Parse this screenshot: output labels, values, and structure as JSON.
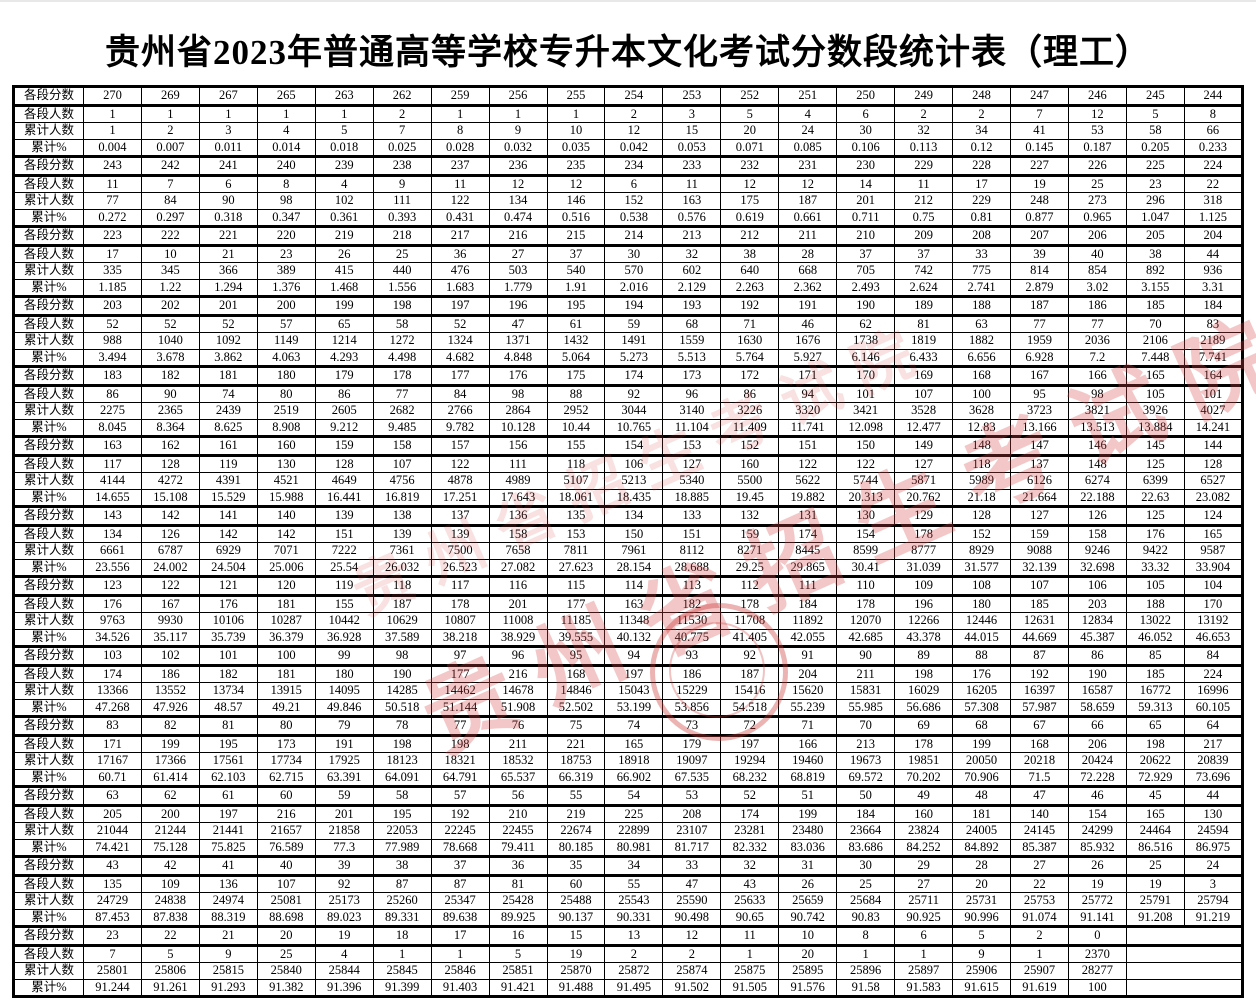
{
  "title": "贵州省2023年普通高等学校专升本文化考试分数段统计表（理工）",
  "row_labels": {
    "score": "各段分数",
    "count": "各段人数",
    "cumulative": "累计人数",
    "cum_pct": "累计%"
  },
  "watermark": {
    "text": "贵州省招生考试院",
    "color": "#d84646"
  },
  "columns_per_group": 20,
  "groups": [
    {
      "scores": [
        "270",
        "269",
        "267",
        "265",
        "263",
        "262",
        "259",
        "256",
        "255",
        "254",
        "253",
        "252",
        "251",
        "250",
        "249",
        "248",
        "247",
        "246",
        "245",
        "244"
      ],
      "counts": [
        "1",
        "1",
        "1",
        "1",
        "1",
        "2",
        "1",
        "1",
        "1",
        "2",
        "3",
        "5",
        "4",
        "6",
        "2",
        "2",
        "7",
        "12",
        "5",
        "8"
      ],
      "cums": [
        "1",
        "2",
        "3",
        "4",
        "5",
        "7",
        "8",
        "9",
        "10",
        "12",
        "15",
        "20",
        "24",
        "30",
        "32",
        "34",
        "41",
        "53",
        "58",
        "66"
      ],
      "pcts": [
        "0.004",
        "0.007",
        "0.011",
        "0.014",
        "0.018",
        "0.025",
        "0.028",
        "0.032",
        "0.035",
        "0.042",
        "0.053",
        "0.071",
        "0.085",
        "0.106",
        "0.113",
        "0.12",
        "0.145",
        "0.187",
        "0.205",
        "0.233"
      ]
    },
    {
      "scores": [
        "243",
        "242",
        "241",
        "240",
        "239",
        "238",
        "237",
        "236",
        "235",
        "234",
        "233",
        "232",
        "231",
        "230",
        "229",
        "228",
        "227",
        "226",
        "225",
        "224"
      ],
      "counts": [
        "11",
        "7",
        "6",
        "8",
        "4",
        "9",
        "11",
        "12",
        "12",
        "6",
        "11",
        "12",
        "12",
        "14",
        "11",
        "17",
        "19",
        "25",
        "23",
        "22"
      ],
      "cums": [
        "77",
        "84",
        "90",
        "98",
        "102",
        "111",
        "122",
        "134",
        "146",
        "152",
        "163",
        "175",
        "187",
        "201",
        "212",
        "229",
        "248",
        "273",
        "296",
        "318"
      ],
      "pcts": [
        "0.272",
        "0.297",
        "0.318",
        "0.347",
        "0.361",
        "0.393",
        "0.431",
        "0.474",
        "0.516",
        "0.538",
        "0.576",
        "0.619",
        "0.661",
        "0.711",
        "0.75",
        "0.81",
        "0.877",
        "0.965",
        "1.047",
        "1.125"
      ]
    },
    {
      "scores": [
        "223",
        "222",
        "221",
        "220",
        "219",
        "218",
        "217",
        "216",
        "215",
        "214",
        "213",
        "212",
        "211",
        "210",
        "209",
        "208",
        "207",
        "206",
        "205",
        "204"
      ],
      "counts": [
        "17",
        "10",
        "21",
        "23",
        "26",
        "25",
        "36",
        "27",
        "37",
        "30",
        "32",
        "38",
        "28",
        "37",
        "37",
        "33",
        "39",
        "40",
        "38",
        "44"
      ],
      "cums": [
        "335",
        "345",
        "366",
        "389",
        "415",
        "440",
        "476",
        "503",
        "540",
        "570",
        "602",
        "640",
        "668",
        "705",
        "742",
        "775",
        "814",
        "854",
        "892",
        "936"
      ],
      "pcts": [
        "1.185",
        "1.22",
        "1.294",
        "1.376",
        "1.468",
        "1.556",
        "1.683",
        "1.779",
        "1.91",
        "2.016",
        "2.129",
        "2.263",
        "2.362",
        "2.493",
        "2.624",
        "2.741",
        "2.879",
        "3.02",
        "3.155",
        "3.31"
      ]
    },
    {
      "scores": [
        "203",
        "202",
        "201",
        "200",
        "199",
        "198",
        "197",
        "196",
        "195",
        "194",
        "193",
        "192",
        "191",
        "190",
        "189",
        "188",
        "187",
        "186",
        "185",
        "184"
      ],
      "counts": [
        "52",
        "52",
        "52",
        "57",
        "65",
        "58",
        "52",
        "47",
        "61",
        "59",
        "68",
        "71",
        "46",
        "62",
        "81",
        "63",
        "77",
        "77",
        "70",
        "83"
      ],
      "cums": [
        "988",
        "1040",
        "1092",
        "1149",
        "1214",
        "1272",
        "1324",
        "1371",
        "1432",
        "1491",
        "1559",
        "1630",
        "1676",
        "1738",
        "1819",
        "1882",
        "1959",
        "2036",
        "2106",
        "2189"
      ],
      "pcts": [
        "3.494",
        "3.678",
        "3.862",
        "4.063",
        "4.293",
        "4.498",
        "4.682",
        "4.848",
        "5.064",
        "5.273",
        "5.513",
        "5.764",
        "5.927",
        "6.146",
        "6.433",
        "6.656",
        "6.928",
        "7.2",
        "7.448",
        "7.741"
      ]
    },
    {
      "scores": [
        "183",
        "182",
        "181",
        "180",
        "179",
        "178",
        "177",
        "176",
        "175",
        "174",
        "173",
        "172",
        "171",
        "170",
        "169",
        "168",
        "167",
        "166",
        "165",
        "164"
      ],
      "counts": [
        "86",
        "90",
        "74",
        "80",
        "86",
        "77",
        "84",
        "98",
        "88",
        "92",
        "96",
        "86",
        "94",
        "101",
        "107",
        "100",
        "95",
        "98",
        "105",
        "101"
      ],
      "cums": [
        "2275",
        "2365",
        "2439",
        "2519",
        "2605",
        "2682",
        "2766",
        "2864",
        "2952",
        "3044",
        "3140",
        "3226",
        "3320",
        "3421",
        "3528",
        "3628",
        "3723",
        "3821",
        "3926",
        "4027"
      ],
      "pcts": [
        "8.045",
        "8.364",
        "8.625",
        "8.908",
        "9.212",
        "9.485",
        "9.782",
        "10.128",
        "10.44",
        "10.765",
        "11.104",
        "11.409",
        "11.741",
        "12.098",
        "12.477",
        "12.83",
        "13.166",
        "13.513",
        "13.884",
        "14.241"
      ]
    },
    {
      "scores": [
        "163",
        "162",
        "161",
        "160",
        "159",
        "158",
        "157",
        "156",
        "155",
        "154",
        "153",
        "152",
        "151",
        "150",
        "149",
        "148",
        "147",
        "146",
        "145",
        "144"
      ],
      "counts": [
        "117",
        "128",
        "119",
        "130",
        "128",
        "107",
        "122",
        "111",
        "118",
        "106",
        "127",
        "160",
        "122",
        "122",
        "127",
        "118",
        "137",
        "148",
        "125",
        "128"
      ],
      "cums": [
        "4144",
        "4272",
        "4391",
        "4521",
        "4649",
        "4756",
        "4878",
        "4989",
        "5107",
        "5213",
        "5340",
        "5500",
        "5622",
        "5744",
        "5871",
        "5989",
        "6126",
        "6274",
        "6399",
        "6527"
      ],
      "pcts": [
        "14.655",
        "15.108",
        "15.529",
        "15.988",
        "16.441",
        "16.819",
        "17.251",
        "17.643",
        "18.061",
        "18.435",
        "18.885",
        "19.45",
        "19.882",
        "20.313",
        "20.762",
        "21.18",
        "21.664",
        "22.188",
        "22.63",
        "23.082"
      ]
    },
    {
      "scores": [
        "143",
        "142",
        "141",
        "140",
        "139",
        "138",
        "137",
        "136",
        "135",
        "134",
        "133",
        "132",
        "131",
        "130",
        "129",
        "128",
        "127",
        "126",
        "125",
        "124"
      ],
      "counts": [
        "134",
        "126",
        "142",
        "142",
        "151",
        "139",
        "139",
        "158",
        "153",
        "150",
        "151",
        "159",
        "174",
        "154",
        "178",
        "152",
        "159",
        "158",
        "176",
        "165"
      ],
      "cums": [
        "6661",
        "6787",
        "6929",
        "7071",
        "7222",
        "7361",
        "7500",
        "7658",
        "7811",
        "7961",
        "8112",
        "8271",
        "8445",
        "8599",
        "8777",
        "8929",
        "9088",
        "9246",
        "9422",
        "9587"
      ],
      "pcts": [
        "23.556",
        "24.002",
        "24.504",
        "25.006",
        "25.54",
        "26.032",
        "26.523",
        "27.082",
        "27.623",
        "28.154",
        "28.688",
        "29.25",
        "29.865",
        "30.41",
        "31.039",
        "31.577",
        "32.139",
        "32.698",
        "33.32",
        "33.904"
      ]
    },
    {
      "scores": [
        "123",
        "122",
        "121",
        "120",
        "119",
        "118",
        "117",
        "116",
        "115",
        "114",
        "113",
        "112",
        "111",
        "110",
        "109",
        "108",
        "107",
        "106",
        "105",
        "104"
      ],
      "counts": [
        "176",
        "167",
        "176",
        "181",
        "155",
        "187",
        "178",
        "201",
        "177",
        "163",
        "182",
        "178",
        "184",
        "178",
        "196",
        "180",
        "185",
        "203",
        "188",
        "170"
      ],
      "cums": [
        "9763",
        "9930",
        "10106",
        "10287",
        "10442",
        "10629",
        "10807",
        "11008",
        "11185",
        "11348",
        "11530",
        "11708",
        "11892",
        "12070",
        "12266",
        "12446",
        "12631",
        "12834",
        "13022",
        "13192"
      ],
      "pcts": [
        "34.526",
        "35.117",
        "35.739",
        "36.379",
        "36.928",
        "37.589",
        "38.218",
        "38.929",
        "39.555",
        "40.132",
        "40.775",
        "41.405",
        "42.055",
        "42.685",
        "43.378",
        "44.015",
        "44.669",
        "45.387",
        "46.052",
        "46.653"
      ]
    },
    {
      "scores": [
        "103",
        "102",
        "101",
        "100",
        "99",
        "98",
        "97",
        "96",
        "95",
        "94",
        "93",
        "92",
        "91",
        "90",
        "89",
        "88",
        "87",
        "86",
        "85",
        "84"
      ],
      "counts": [
        "174",
        "186",
        "182",
        "181",
        "180",
        "190",
        "177",
        "216",
        "168",
        "197",
        "186",
        "187",
        "204",
        "211",
        "198",
        "176",
        "192",
        "190",
        "185",
        "224"
      ],
      "cums": [
        "13366",
        "13552",
        "13734",
        "13915",
        "14095",
        "14285",
        "14462",
        "14678",
        "14846",
        "15043",
        "15229",
        "15416",
        "15620",
        "15831",
        "16029",
        "16205",
        "16397",
        "16587",
        "16772",
        "16996"
      ],
      "pcts": [
        "47.268",
        "47.926",
        "48.57",
        "49.21",
        "49.846",
        "50.518",
        "51.144",
        "51.908",
        "52.502",
        "53.199",
        "53.856",
        "54.518",
        "55.239",
        "55.985",
        "56.686",
        "57.308",
        "57.987",
        "58.659",
        "59.313",
        "60.105"
      ]
    },
    {
      "scores": [
        "83",
        "82",
        "81",
        "80",
        "79",
        "78",
        "77",
        "76",
        "75",
        "74",
        "73",
        "72",
        "71",
        "70",
        "69",
        "68",
        "67",
        "66",
        "65",
        "64"
      ],
      "counts": [
        "171",
        "199",
        "195",
        "173",
        "191",
        "198",
        "198",
        "211",
        "221",
        "165",
        "179",
        "197",
        "166",
        "213",
        "178",
        "199",
        "168",
        "206",
        "198",
        "217"
      ],
      "cums": [
        "17167",
        "17366",
        "17561",
        "17734",
        "17925",
        "18123",
        "18321",
        "18532",
        "18753",
        "18918",
        "19097",
        "19294",
        "19460",
        "19673",
        "19851",
        "20050",
        "20218",
        "20424",
        "20622",
        "20839"
      ],
      "pcts": [
        "60.71",
        "61.414",
        "62.103",
        "62.715",
        "63.391",
        "64.091",
        "64.791",
        "65.537",
        "66.319",
        "66.902",
        "67.535",
        "68.232",
        "68.819",
        "69.572",
        "70.202",
        "70.906",
        "71.5",
        "72.228",
        "72.929",
        "73.696"
      ]
    },
    {
      "scores": [
        "63",
        "62",
        "61",
        "60",
        "59",
        "58",
        "57",
        "56",
        "55",
        "54",
        "53",
        "52",
        "51",
        "50",
        "49",
        "48",
        "47",
        "46",
        "45",
        "44"
      ],
      "counts": [
        "205",
        "200",
        "197",
        "216",
        "201",
        "195",
        "192",
        "210",
        "219",
        "225",
        "208",
        "174",
        "199",
        "184",
        "160",
        "181",
        "140",
        "154",
        "165",
        "130"
      ],
      "cums": [
        "21044",
        "21244",
        "21441",
        "21657",
        "21858",
        "22053",
        "22245",
        "22455",
        "22674",
        "22899",
        "23107",
        "23281",
        "23480",
        "23664",
        "23824",
        "24005",
        "24145",
        "24299",
        "24464",
        "24594"
      ],
      "pcts": [
        "74.421",
        "75.128",
        "75.825",
        "76.589",
        "77.3",
        "77.989",
        "78.668",
        "79.411",
        "80.185",
        "80.981",
        "81.717",
        "82.332",
        "83.036",
        "83.686",
        "84.252",
        "84.892",
        "85.387",
        "85.932",
        "86.516",
        "86.975"
      ]
    },
    {
      "scores": [
        "43",
        "42",
        "41",
        "40",
        "39",
        "38",
        "37",
        "36",
        "35",
        "34",
        "33",
        "32",
        "31",
        "30",
        "29",
        "28",
        "27",
        "26",
        "25",
        "24"
      ],
      "counts": [
        "135",
        "109",
        "136",
        "107",
        "92",
        "87",
        "87",
        "81",
        "60",
        "55",
        "47",
        "43",
        "26",
        "25",
        "27",
        "20",
        "22",
        "19",
        "19",
        "3"
      ],
      "cums": [
        "24729",
        "24838",
        "24974",
        "25081",
        "25173",
        "25260",
        "25347",
        "25428",
        "25488",
        "25543",
        "25590",
        "25633",
        "25659",
        "25684",
        "25711",
        "25731",
        "25753",
        "25772",
        "25791",
        "25794"
      ],
      "pcts": [
        "87.453",
        "87.838",
        "88.319",
        "88.698",
        "89.023",
        "89.331",
        "89.638",
        "89.925",
        "90.137",
        "90.331",
        "90.498",
        "90.65",
        "90.742",
        "90.83",
        "90.925",
        "90.996",
        "91.074",
        "91.141",
        "91.208",
        "91.219"
      ]
    },
    {
      "scores": [
        "23",
        "22",
        "21",
        "20",
        "19",
        "18",
        "17",
        "16",
        "15",
        "13",
        "12",
        "11",
        "10",
        "8",
        "6",
        "5",
        "2",
        "0"
      ],
      "counts": [
        "7",
        "5",
        "9",
        "25",
        "4",
        "1",
        "1",
        "5",
        "19",
        "2",
        "2",
        "1",
        "20",
        "1",
        "1",
        "9",
        "1",
        "2370"
      ],
      "cums": [
        "25801",
        "25806",
        "25815",
        "25840",
        "25844",
        "25845",
        "25846",
        "25851",
        "25870",
        "25872",
        "25874",
        "25875",
        "25895",
        "25896",
        "25897",
        "25906",
        "25907",
        "28277"
      ],
      "pcts": [
        "91.244",
        "91.261",
        "91.293",
        "91.382",
        "91.396",
        "91.399",
        "91.403",
        "91.421",
        "91.488",
        "91.495",
        "91.502",
        "91.505",
        "91.576",
        "91.58",
        "91.583",
        "91.615",
        "91.619",
        "100"
      ]
    }
  ]
}
